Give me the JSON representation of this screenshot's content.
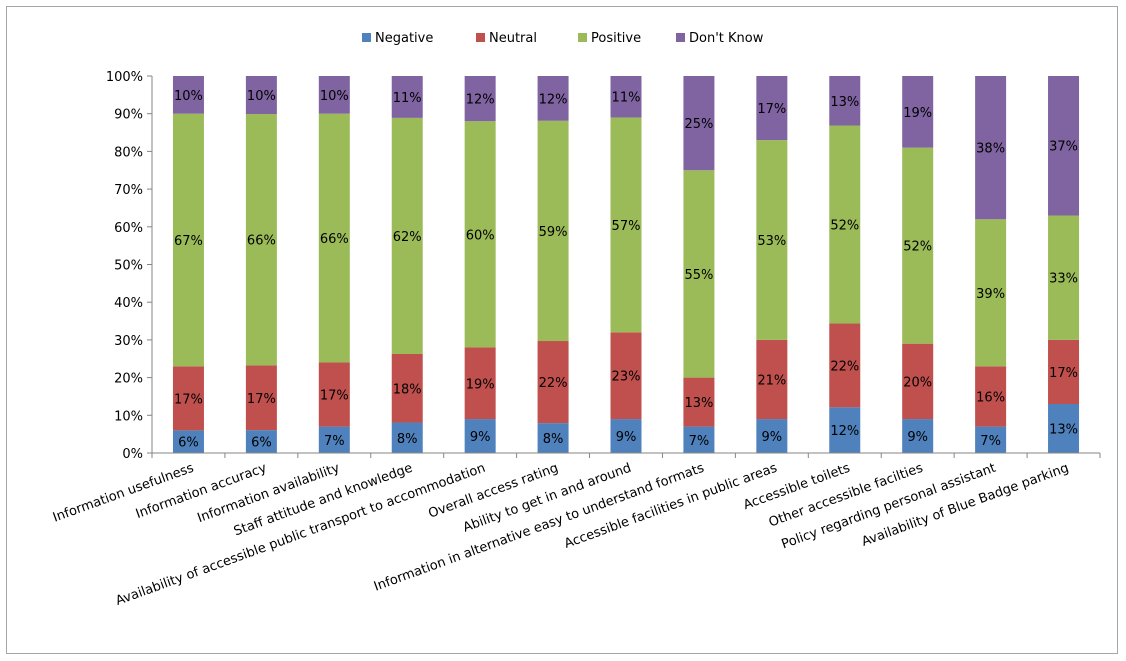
{
  "chart_data": {
    "type": "bar",
    "stacked": true,
    "percent_axis": true,
    "title": "",
    "xlabel": "",
    "ylabel": "",
    "ylim": [
      0,
      100
    ],
    "yticks": [
      "0%",
      "10%",
      "20%",
      "30%",
      "40%",
      "50%",
      "60%",
      "70%",
      "80%",
      "90%",
      "100%"
    ],
    "grid": false,
    "legend_position": "top",
    "categories": [
      "Information usefulness",
      "Information accuracy",
      "Information availability",
      "Staff attitude and knowledge",
      "Availability of accessible public transport to accommodation",
      "Overall access rating",
      "Ability to get in and around",
      "Information in alternative easy to understand formats",
      "Accessible facilities in public areas",
      "Accessible toilets",
      "Other accessible facilties",
      "Policy regarding personal assistant",
      "Availability of Blue Badge parking"
    ],
    "series": [
      {
        "name": "Negative",
        "color": "#4f81bd",
        "values": [
          6,
          6,
          7,
          8,
          9,
          8,
          9,
          7,
          9,
          12,
          9,
          7,
          13
        ],
        "labels": [
          "6%",
          "6%",
          "7%",
          "8%",
          "9%",
          "8%",
          "9%",
          "7%",
          "9%",
          "12%",
          "9%",
          "7%",
          "13%"
        ]
      },
      {
        "name": "Neutral",
        "color": "#c0504d",
        "values": [
          17,
          17,
          17,
          18,
          19,
          22,
          23,
          13,
          21,
          22,
          20,
          16,
          17
        ],
        "labels": [
          "17%",
          "17%",
          "17%",
          "18%",
          "19%",
          "22%",
          "23%",
          "13%",
          "21%",
          "22%",
          "20%",
          "16%",
          "17%"
        ]
      },
      {
        "name": "Positive",
        "color": "#9bbb59",
        "values": [
          67,
          66,
          66,
          62,
          60,
          59,
          57,
          55,
          53,
          52,
          52,
          39,
          33
        ],
        "labels": [
          "67%",
          "66%",
          "66%",
          "62%",
          "60%",
          "59%",
          "57%",
          "55%",
          "53%",
          "52%",
          "52%",
          "39%",
          "33%"
        ]
      },
      {
        "name": "Don't Know",
        "color": "#8064a2",
        "values": [
          10,
          10,
          10,
          11,
          12,
          12,
          11,
          25,
          17,
          13,
          19,
          38,
          37
        ],
        "labels": [
          "10%",
          "10%",
          "10%",
          "11%",
          "12%",
          "12%",
          "11%",
          "25%",
          "17%",
          "13%",
          "19%",
          "38%",
          "37%"
        ]
      }
    ]
  }
}
